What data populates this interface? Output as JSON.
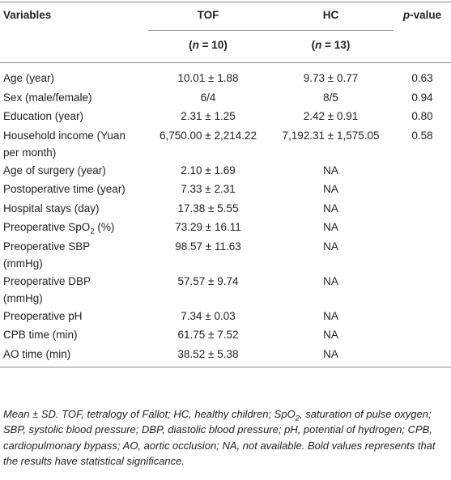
{
  "table": {
    "header": {
      "variables": "Variables",
      "tof": "TOF",
      "hc": "HC",
      "p_value": [
        "p",
        "-value"
      ],
      "tof_n": [
        "(",
        "n",
        " = 10)"
      ],
      "hc_n": [
        "(",
        "n",
        " = 13)"
      ]
    },
    "rows": [
      [
        "Age (year)",
        "10.01 ± 1.88",
        "9.73 ± 0.77",
        "0.63"
      ],
      [
        "Sex (male/female)",
        "6/4",
        "8/5",
        "0.94"
      ],
      [
        "Education (year)",
        "2.31 ± 1.25",
        "2.42 ± 0.91",
        "0.80"
      ],
      [
        [
          "Household income (Yuan",
          "per month)"
        ],
        "6,750.00 ± 2,214.22",
        "7,192.31 ± 1,575.05",
        "0.58"
      ],
      [
        "Age of surgery (year)",
        "2.10 ± 1.69",
        "NA",
        ""
      ],
      [
        "Postoperative time (year)",
        "7.33 ± 2.31",
        "NA",
        ""
      ],
      [
        "Hospital stays (day)",
        "17.38 ± 5.55",
        "NA",
        ""
      ],
      [
        [
          "Preoperative SpO",
          "2",
          " (%)"
        ],
        "73.29 ± 16.11",
        "NA",
        ""
      ],
      [
        [
          "Preoperative SBP",
          "(mmHg)"
        ],
        "98.57 ± 11.63",
        "NA",
        ""
      ],
      [
        [
          "Preoperative DBP",
          "(mmHg)"
        ],
        "57.57 ± 9.74",
        "NA",
        ""
      ],
      [
        "Preoperative pH",
        "7.34 ± 0.03",
        "NA",
        ""
      ],
      [
        "CPB time (min)",
        "61.75 ± 7.52",
        "NA",
        ""
      ],
      [
        "AO time (min)",
        "38.52 ± 5.38",
        "NA",
        ""
      ]
    ]
  },
  "footnote": [
    "Mean ± SD. TOF, tetralogy of Fallot; HC, healthy children; SpO",
    "2",
    ", saturation of pulse oxygen; SBP, systolic blood pressure; DBP, diastolic blood pressure; pH, potential of hydrogen; CPB, cardiopulmonary bypass; AO, aortic occlusion; NA, not available. Bold values represents that the results have statistical significance."
  ]
}
